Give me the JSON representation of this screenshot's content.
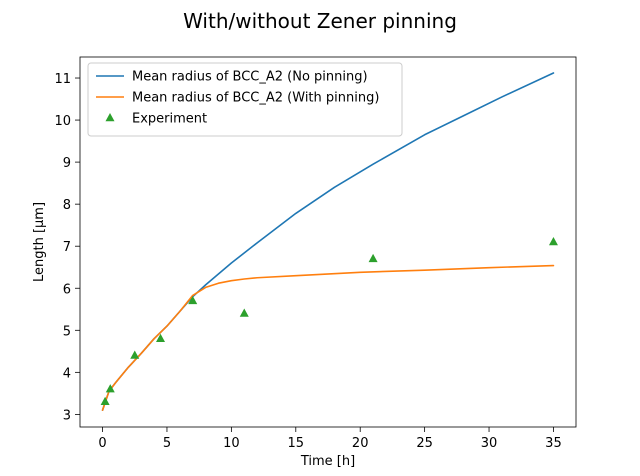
{
  "chart_data": {
    "type": "line",
    "title": "With/without Zener pinning",
    "xlabel": "Time [h]",
    "ylabel": "Length [µm]",
    "xlim": [
      -1.75,
      36.75
    ],
    "ylim": [
      2.7,
      11.5
    ],
    "xticks": [
      0,
      5,
      10,
      15,
      20,
      25,
      30,
      35
    ],
    "yticks": [
      3,
      4,
      5,
      6,
      7,
      8,
      9,
      10,
      11
    ],
    "grid": false,
    "legend_position": "upper-left",
    "series": [
      {
        "name": "Mean radius of BCC_A2 (No pinning)",
        "kind": "line",
        "color": "#1f77b4",
        "x": [
          0,
          0.5,
          1,
          2,
          3,
          4,
          5,
          6,
          7,
          8,
          10,
          12,
          15,
          18,
          21,
          25,
          28,
          31,
          35
        ],
        "y": [
          3.1,
          3.55,
          3.75,
          4.12,
          4.45,
          4.8,
          5.1,
          5.45,
          5.8,
          6.08,
          6.6,
          7.08,
          7.78,
          8.4,
          8.95,
          9.65,
          10.1,
          10.55,
          11.12
        ]
      },
      {
        "name": "Mean radius of BCC_A2 (With pinning)",
        "kind": "line",
        "color": "#ff7f0e",
        "x": [
          0,
          0.5,
          1,
          2,
          3,
          4,
          5,
          6,
          7,
          8,
          9,
          10,
          11,
          12,
          15,
          20,
          25,
          30,
          35
        ],
        "y": [
          3.1,
          3.55,
          3.75,
          4.12,
          4.45,
          4.8,
          5.1,
          5.45,
          5.83,
          6.02,
          6.12,
          6.18,
          6.22,
          6.25,
          6.3,
          6.38,
          6.43,
          6.49,
          6.54
        ]
      },
      {
        "name": "Experiment",
        "kind": "scatter",
        "marker": "triangle-up",
        "color": "#2ca02c",
        "x": [
          0.2,
          0.6,
          2.5,
          4.5,
          7,
          11,
          21,
          35
        ],
        "y": [
          3.3,
          3.6,
          4.4,
          4.8,
          5.7,
          5.4,
          6.7,
          7.1
        ]
      }
    ]
  }
}
